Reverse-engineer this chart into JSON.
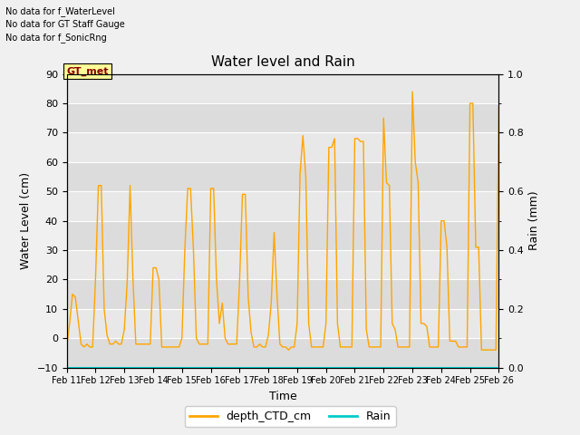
{
  "title": "Water level and Rain",
  "xlabel": "Time",
  "ylabel_left": "Water Level (cm)",
  "ylabel_right": "Rain (mm)",
  "ylim_left": [
    -10,
    90
  ],
  "ylim_right": [
    0.0,
    1.0
  ],
  "yticks_left": [
    -10,
    0,
    10,
    20,
    30,
    40,
    50,
    60,
    70,
    80,
    90
  ],
  "yticks_right": [
    0.0,
    0.2,
    0.4,
    0.6,
    0.8,
    1.0
  ],
  "x_labels": [
    "Feb 11",
    "Feb 12",
    "Feb 13",
    "Feb 14",
    "Feb 15",
    "Feb 16",
    "Feb 17",
    "Feb 18",
    "Feb 19",
    "Feb 20",
    "Feb 21",
    "Feb 22",
    "Feb 23",
    "Feb 24",
    "Feb 25",
    "Feb 26"
  ],
  "annotations": [
    "No data for f_WaterLevel",
    "No data for GT Staff Gauge",
    "No data for f_SonicRng"
  ],
  "gt_met_label": "GT_met",
  "legend_entries": [
    "depth_CTD_cm",
    "Rain"
  ],
  "legend_colors": [
    "#FFA500",
    "#00CCCC"
  ],
  "line_color_depth": "#FFA500",
  "line_color_rain": "#00CCCC",
  "background_color": "#f0f0f0",
  "plot_bg_color": "#e8e8e8",
  "band_colors": [
    "#e0e0e0",
    "#ebebeb"
  ],
  "grid_color": "#ffffff",
  "depth_x": [
    11.0,
    11.1,
    11.2,
    11.3,
    11.4,
    11.5,
    11.6,
    11.7,
    11.8,
    11.9,
    12.0,
    12.1,
    12.2,
    12.3,
    12.4,
    12.5,
    12.6,
    12.7,
    12.8,
    12.9,
    13.0,
    13.1,
    13.2,
    13.3,
    13.4,
    13.5,
    13.6,
    13.7,
    13.8,
    13.9,
    14.0,
    14.1,
    14.2,
    14.3,
    14.4,
    14.5,
    14.6,
    14.7,
    14.8,
    14.9,
    15.0,
    15.1,
    15.2,
    15.3,
    15.4,
    15.5,
    15.6,
    15.7,
    15.8,
    15.9,
    16.0,
    16.1,
    16.2,
    16.3,
    16.4,
    16.5,
    16.6,
    16.7,
    16.8,
    16.9,
    17.0,
    17.1,
    17.2,
    17.3,
    17.4,
    17.5,
    17.6,
    17.7,
    17.8,
    17.9,
    18.0,
    18.1,
    18.2,
    18.3,
    18.4,
    18.5,
    18.6,
    18.7,
    18.8,
    18.9,
    19.0,
    19.1,
    19.2,
    19.3,
    19.4,
    19.5,
    19.6,
    19.7,
    19.8,
    19.9,
    20.0,
    20.1,
    20.2,
    20.3,
    20.4,
    20.5,
    20.6,
    20.7,
    20.8,
    20.9,
    21.0,
    21.1,
    21.2,
    21.3,
    21.4,
    21.5,
    21.6,
    21.7,
    21.8,
    21.9,
    22.0,
    22.1,
    22.2,
    22.3,
    22.4,
    22.5,
    22.6,
    22.7,
    22.8,
    22.9,
    23.0,
    23.1,
    23.2,
    23.3,
    23.4,
    23.5,
    23.6,
    23.7,
    23.8,
    23.9,
    24.0,
    24.1,
    24.2,
    24.3,
    24.4,
    24.5,
    24.6,
    24.7,
    24.8,
    24.9,
    25.0,
    25.1,
    25.2,
    25.3,
    25.4,
    25.5,
    25.6,
    25.7,
    25.8,
    25.9,
    26.0
  ],
  "depth_y": [
    -3,
    5,
    15,
    14,
    6,
    -2,
    -3,
    -2,
    -3,
    -3,
    20,
    52,
    52,
    10,
    1,
    -2,
    -2,
    -1,
    -2,
    -2,
    3,
    19,
    52,
    20,
    -2,
    -2,
    -2,
    -2,
    -2,
    -2,
    24,
    24,
    20,
    -3,
    -3,
    -3,
    -3,
    -3,
    -3,
    -3,
    0,
    30,
    51,
    51,
    30,
    0,
    -2,
    -2,
    -2,
    -2,
    51,
    51,
    20,
    5,
    12,
    0,
    -2,
    -2,
    -2,
    -2,
    19,
    49,
    49,
    14,
    2,
    -3,
    -3,
    -2,
    -3,
    -3,
    1,
    12,
    36,
    15,
    -2,
    -3,
    -3,
    -4,
    -3,
    -3,
    5,
    56,
    69,
    55,
    5,
    -3,
    -3,
    -3,
    -3,
    -3,
    5,
    65,
    65,
    68,
    5,
    -3,
    -3,
    -3,
    -3,
    -3,
    68,
    68,
    67,
    67,
    3,
    -3,
    -3,
    -3,
    -3,
    -3,
    75,
    53,
    52,
    5,
    3,
    -3,
    -3,
    -3,
    -3,
    -3,
    84,
    60,
    53,
    5,
    5,
    4,
    -3,
    -3,
    -3,
    -3,
    40,
    40,
    31,
    -1,
    -1,
    -1,
    -3,
    -3,
    -3,
    -3,
    80,
    80,
    31,
    31,
    -4,
    -4,
    -4,
    -4,
    -4,
    -4,
    79
  ],
  "rain_value": -10,
  "x_min": 11,
  "x_max": 26
}
